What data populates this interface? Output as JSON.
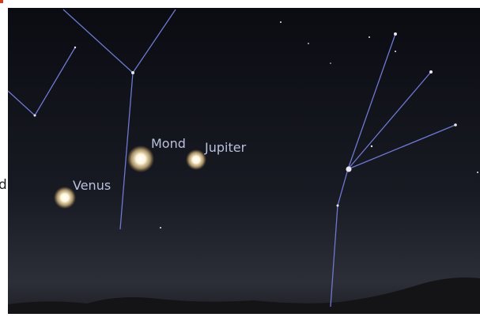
{
  "labels": {
    "mond": "Mond",
    "jupiter": "Jupiter",
    "venus": "Venus",
    "edge": "d"
  }
}
